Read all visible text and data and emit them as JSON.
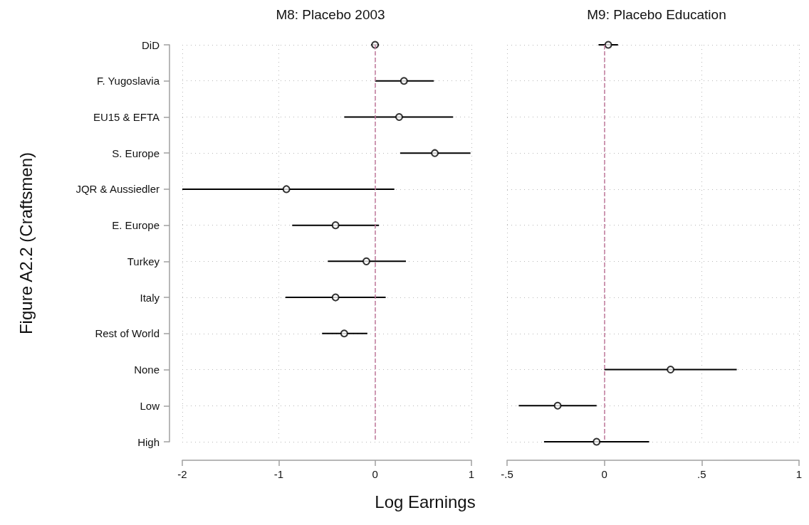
{
  "chart_data": [
    {
      "type": "scatter",
      "orientation": "horizontal",
      "title": "M8: Placebo 2003",
      "ylabel": "Figure A2.2 (Craftsmen)",
      "xlabel": "Log Earnings",
      "categories": [
        "DiD",
        "F. Yugoslavia",
        "EU15 & EFTA",
        "S. Europe",
        "JQR & Aussiedler",
        "E. Europe",
        "Turkey",
        "Italy",
        "Rest of World",
        "None",
        "Low",
        "High"
      ],
      "series": [
        {
          "color": "#000000",
          "values": [
            0.0,
            0.3,
            0.25,
            0.62,
            -0.92,
            -0.41,
            -0.09,
            -0.41,
            -0.32,
            null,
            null,
            null
          ],
          "errors": [
            [
              -0.04,
              0.04
            ],
            [
              0.0,
              0.61
            ],
            [
              -0.32,
              0.81
            ],
            [
              0.26,
              0.99
            ],
            [
              -2.0,
              0.2
            ],
            [
              -0.86,
              0.04
            ],
            [
              -0.49,
              0.32
            ],
            [
              -0.93,
              0.11
            ],
            [
              -0.55,
              -0.08
            ],
            null,
            null,
            null
          ]
        }
      ],
      "xlim": [
        -2,
        1
      ],
      "xticks": [
        -2,
        -1,
        0,
        1
      ],
      "grid": true,
      "marker": "circle",
      "ref_lines": [
        {
          "axis": "x",
          "value": 0,
          "color": "#c0789a",
          "line_style": "dashed"
        }
      ]
    },
    {
      "type": "scatter",
      "orientation": "horizontal",
      "title": "M9: Placebo Education",
      "categories": [
        null,
        null,
        null,
        null,
        null,
        null,
        null,
        null,
        null,
        null,
        null,
        null
      ],
      "series": [
        {
          "color": "#000000",
          "values": [
            0.02,
            null,
            null,
            null,
            null,
            null,
            null,
            null,
            null,
            0.34,
            -0.24,
            -0.04
          ],
          "errors": [
            [
              -0.03,
              0.07
            ],
            null,
            null,
            null,
            null,
            null,
            null,
            null,
            null,
            [
              0.0,
              0.68
            ],
            [
              -0.44,
              -0.04
            ],
            [
              -0.31,
              0.23
            ]
          ]
        }
      ],
      "xlim": [
        -0.5,
        1
      ],
      "xticks": [
        {
          "value": -0.5,
          "label": "-.5"
        },
        0,
        {
          "value": 0.5,
          "label": ".5"
        },
        1
      ],
      "grid": true,
      "marker": "circle",
      "tick_labels": "x",
      "ref_lines": [
        {
          "axis": "x",
          "value": 0,
          "color": "#c0789a",
          "line_style": "dashed"
        }
      ]
    }
  ]
}
